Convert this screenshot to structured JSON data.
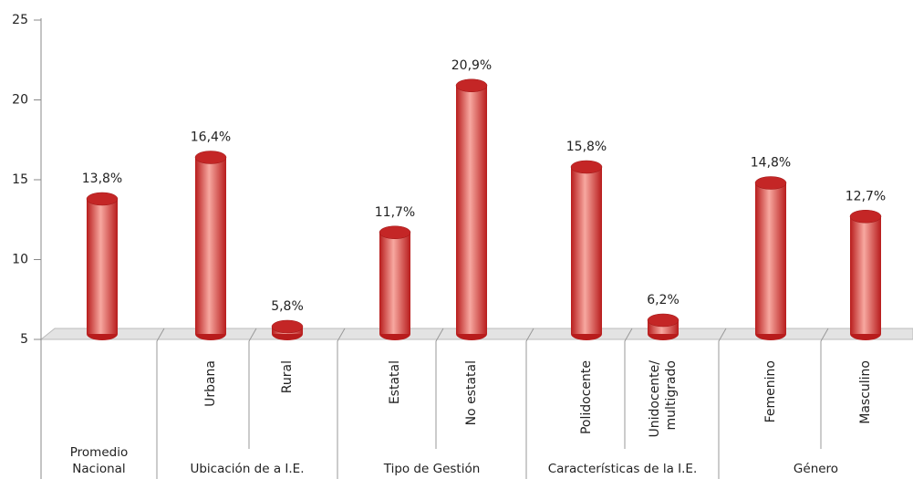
{
  "chart_data": {
    "type": "cylinder-bar",
    "color": "#d42a2a",
    "ylim": [
      5,
      25
    ],
    "yticks": [
      5,
      10,
      15,
      20,
      25
    ],
    "groups": [
      {
        "name": "Promedio Nacional",
        "categories": [
          null
        ],
        "values": [
          13.8
        ],
        "value_labels": [
          "13,8%"
        ]
      },
      {
        "name": "Ubicación de a I.E.",
        "categories": [
          "Urbana",
          "Rural"
        ],
        "values": [
          16.4,
          5.8
        ],
        "value_labels": [
          "16,4%",
          "5,8%"
        ]
      },
      {
        "name": "Tipo de Gestión",
        "categories": [
          "Estatal",
          "No estatal"
        ],
        "values": [
          11.7,
          20.9
        ],
        "value_labels": [
          "11,7%",
          "20,9%"
        ]
      },
      {
        "name": "Características de la I.E.",
        "categories": [
          "Polidocente",
          "Unidocente/ multigrado"
        ],
        "values": [
          15.8,
          6.2
        ],
        "value_labels": [
          "15,8%",
          "6,2%"
        ]
      },
      {
        "name": "Género",
        "categories": [
          "Femenino",
          "Masculino"
        ],
        "values": [
          14.8,
          12.7
        ],
        "value_labels": [
          "14,8%",
          "12,7%"
        ]
      }
    ]
  }
}
